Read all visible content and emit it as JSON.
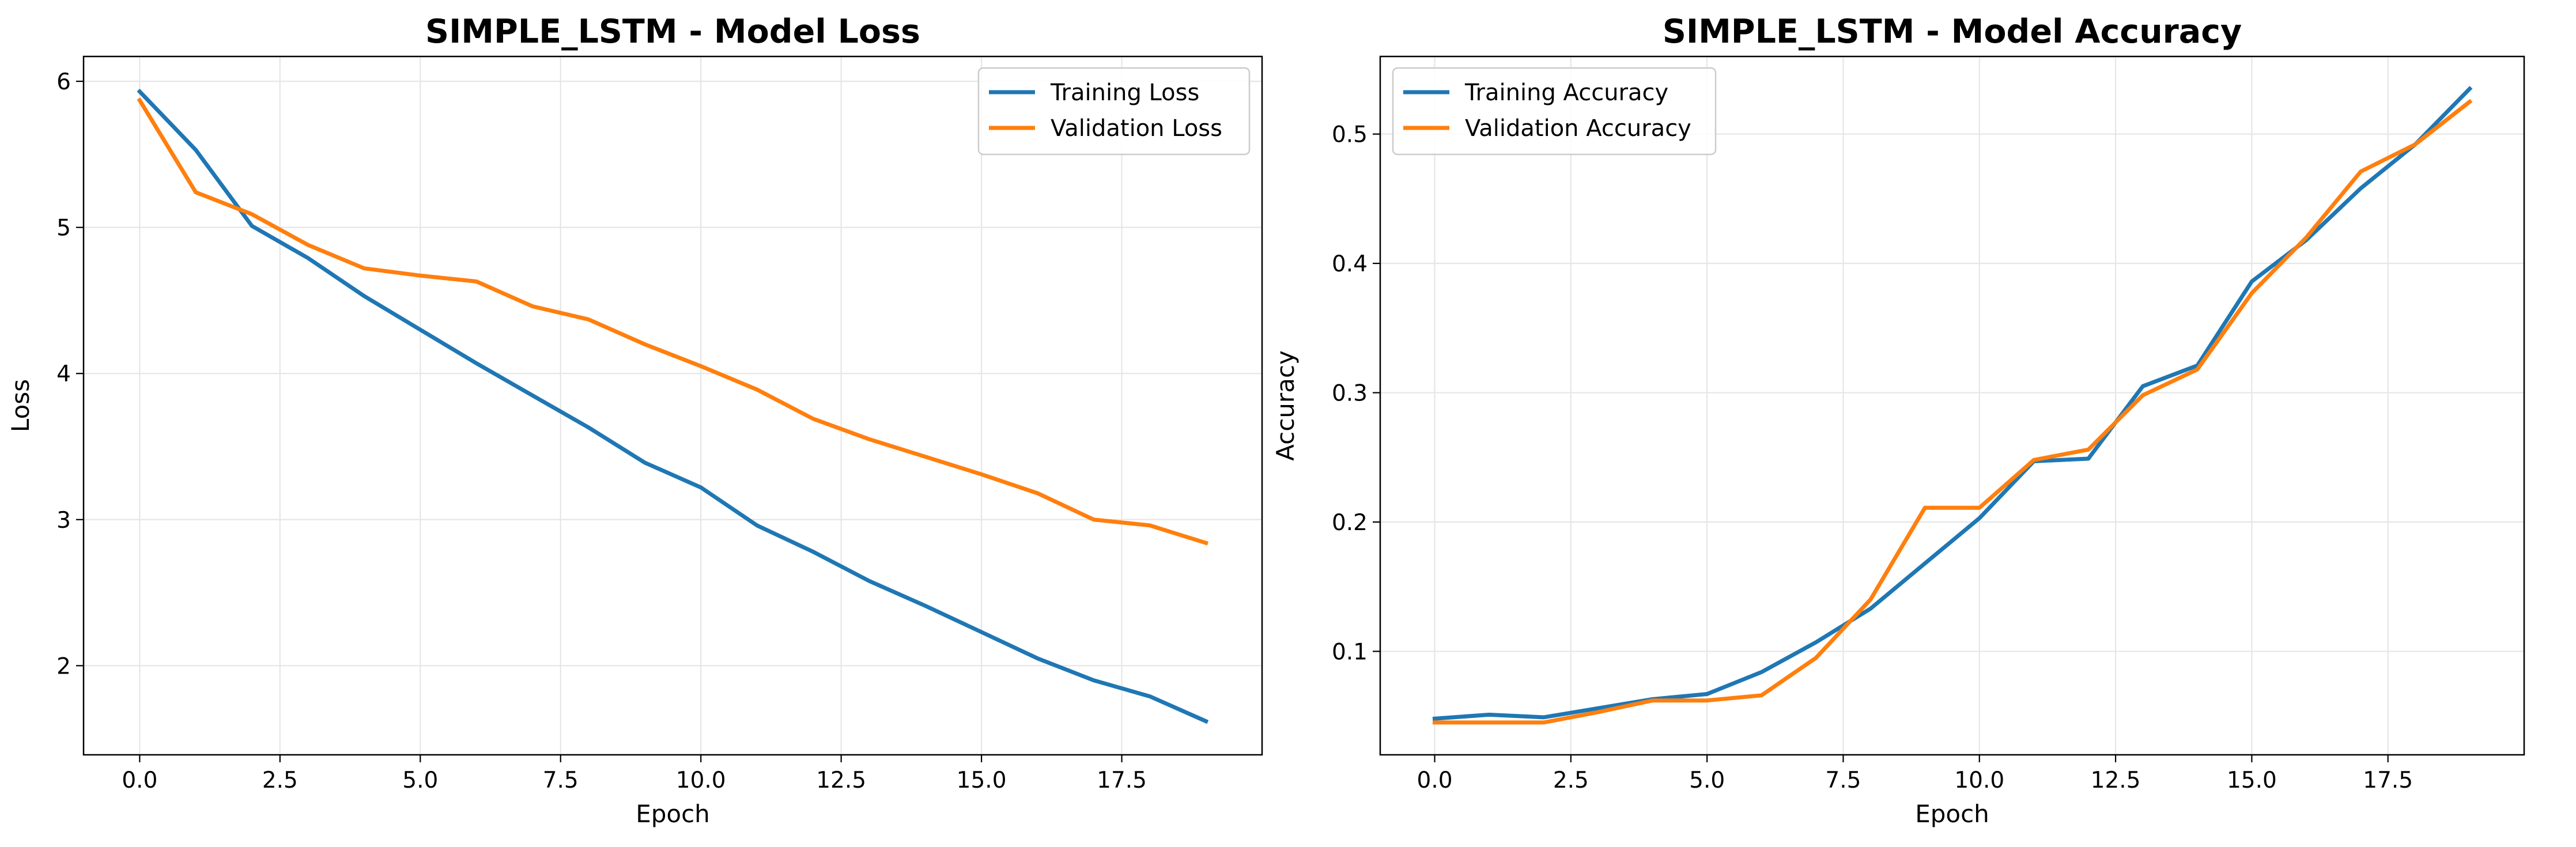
{
  "charts": [
    {
      "id": "loss",
      "chart_data": {
        "type": "line",
        "title": "SIMPLE_LSTM - Model Loss",
        "xlabel": "Epoch",
        "ylabel": "Loss",
        "x": [
          0,
          1,
          2,
          3,
          4,
          5,
          6,
          7,
          8,
          9,
          10,
          11,
          12,
          13,
          14,
          15,
          16,
          17,
          18,
          19
        ],
        "xlim": [
          -1.0,
          20.0
        ],
        "ylim": [
          1.39,
          6.17
        ],
        "xticks": [
          0,
          2.5,
          5,
          7.5,
          10,
          12.5,
          15,
          17.5
        ],
        "xtick_labels": [
          "0.0",
          "2.5",
          "5.0",
          "7.5",
          "10.0",
          "12.5",
          "15.0",
          "17.5"
        ],
        "yticks": [
          2,
          3,
          4,
          5,
          6
        ],
        "ytick_labels": [
          "2",
          "3",
          "4",
          "5",
          "6"
        ],
        "grid": true,
        "legend": "upper right",
        "series": [
          {
            "name": "Training Loss",
            "color": "#1f77b4",
            "values": [
              5.93,
              5.53,
              5.01,
              4.79,
              4.53,
              4.3,
              4.07,
              3.85,
              3.63,
              3.39,
              3.22,
              2.96,
              2.78,
              2.58,
              2.41,
              2.23,
              2.05,
              1.9,
              1.79,
              1.62
            ]
          },
          {
            "name": "Validation Loss",
            "color": "#ff7f0e",
            "values": [
              5.87,
              5.24,
              5.09,
              4.88,
              4.72,
              4.67,
              4.63,
              4.46,
              4.37,
              4.2,
              4.05,
              3.89,
              3.69,
              3.55,
              3.43,
              3.31,
              3.18,
              3.0,
              2.96,
              2.84
            ]
          }
        ]
      }
    },
    {
      "id": "accuracy",
      "chart_data": {
        "type": "line",
        "title": "SIMPLE_LSTM - Model Accuracy",
        "xlabel": "Epoch",
        "ylabel": "Accuracy",
        "x": [
          0,
          1,
          2,
          3,
          4,
          5,
          6,
          7,
          8,
          9,
          10,
          11,
          12,
          13,
          14,
          15,
          16,
          17,
          18,
          19
        ],
        "xlim": [
          -1.0,
          20.0
        ],
        "ylim": [
          0.02,
          0.56
        ],
        "xticks": [
          0,
          2.5,
          5,
          7.5,
          10,
          12.5,
          15,
          17.5
        ],
        "xtick_labels": [
          "0.0",
          "2.5",
          "5.0",
          "7.5",
          "10.0",
          "12.5",
          "15.0",
          "17.5"
        ],
        "yticks": [
          0.1,
          0.2,
          0.3,
          0.4,
          0.5
        ],
        "ytick_labels": [
          "0.1",
          "0.2",
          "0.3",
          "0.4",
          "0.5"
        ],
        "grid": true,
        "legend": "upper left",
        "series": [
          {
            "name": "Training Accuracy",
            "color": "#1f77b4",
            "values": [
              0.048,
              0.051,
              0.049,
              0.056,
              0.063,
              0.067,
              0.084,
              0.107,
              0.133,
              0.168,
              0.203,
              0.247,
              0.249,
              0.305,
              0.321,
              0.386,
              0.418,
              0.458,
              0.492,
              0.535
            ]
          },
          {
            "name": "Validation Accuracy",
            "color": "#ff7f0e",
            "values": [
              0.045,
              0.045,
              0.045,
              0.053,
              0.062,
              0.062,
              0.066,
              0.095,
              0.14,
              0.211,
              0.211,
              0.248,
              0.256,
              0.298,
              0.318,
              0.377,
              0.42,
              0.471,
              0.492,
              0.525
            ]
          }
        ]
      }
    }
  ]
}
